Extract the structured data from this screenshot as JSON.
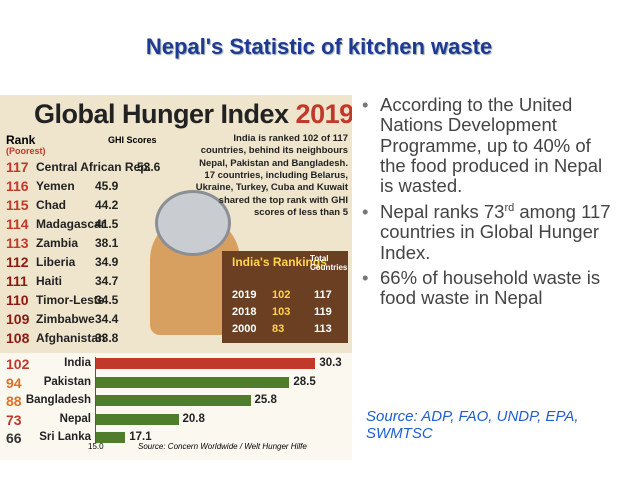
{
  "slide": {
    "title": "Nepal's Statistic of kitchen waste",
    "bullets": [
      {
        "text": "According to the United Nations Development Programme, up to 40% of the food produced in Nepal is wasted."
      },
      {
        "text_before": "Nepal ranks 73",
        "superscript": "rd",
        "text_after": " among 117 countries in Global Hunger Index."
      },
      {
        "text": "66% of household waste is food waste in Nepal"
      }
    ],
    "source": "Source: ADP, FAO, UNDP, EPA, SWMTSC"
  },
  "infographic": {
    "title": "Global Hunger Index",
    "year": "2019",
    "rank_label": "Rank",
    "rank_sublabel": "(Poorest)",
    "score_label": "GHI Scores",
    "rows": [
      {
        "rank": 117,
        "country": "Central African Rep.",
        "score": 53.6
      },
      {
        "rank": 116,
        "country": "Yemen",
        "score": 45.9
      },
      {
        "rank": 115,
        "country": "Chad",
        "score": 44.2
      },
      {
        "rank": 114,
        "country": "Madagascar",
        "score": 41.5
      },
      {
        "rank": 113,
        "country": "Zambia",
        "score": 38.1
      },
      {
        "rank": 112,
        "country": "Liberia",
        "score": 34.9
      },
      {
        "rank": 111,
        "country": "Haiti",
        "score": 34.7
      },
      {
        "rank": 110,
        "country": "Timor-Leste",
        "score": 34.5
      },
      {
        "rank": 109,
        "country": "Zimbabwe",
        "score": 34.4
      },
      {
        "rank": 108,
        "country": "Afghanistan",
        "score": 33.8
      }
    ],
    "note": "India is ranked 102 of 117 countries, behind its neighbours Nepal, Pakistan and Bangladesh. 17 countries, including Belarus, Ukraine, Turkey, Cuba and Kuwait shared the top rank with GHI scores of less than 5",
    "rankings_title": "India's Rankings",
    "total_label": "Total Countries",
    "rankings": [
      {
        "year": 2019,
        "rank": 102,
        "total": 117
      },
      {
        "year": 2018,
        "rank": 103,
        "total": 119
      },
      {
        "year": 2000,
        "rank": 83,
        "total": 113
      }
    ],
    "bars": [
      {
        "rank": 102,
        "country": "India",
        "value": 30.3,
        "color": "#c0392b"
      },
      {
        "rank": 94,
        "country": "Pakistan",
        "value": 28.5,
        "color": "#4f7d2c"
      },
      {
        "rank": 88,
        "country": "Bangladesh",
        "value": 25.8,
        "color": "#4f7d2c"
      },
      {
        "rank": 73,
        "country": "Nepal",
        "value": 20.8,
        "color": "#4f7d2c"
      },
      {
        "rank": 66,
        "country": "Sri Lanka",
        "value": 17.1,
        "color": "#4f7d2c"
      }
    ],
    "axis_start": {
      "value": 15,
      "label": "15.0"
    },
    "source": "Source: Concern Worldwide / Welt Hunger Hilfe"
  }
}
